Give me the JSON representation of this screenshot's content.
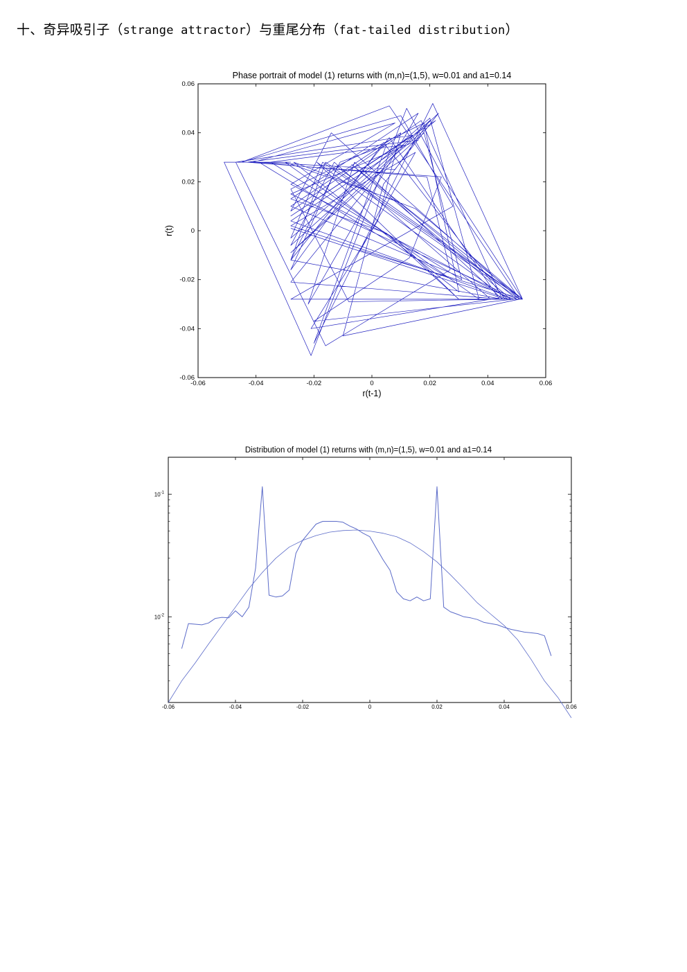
{
  "page": {
    "heading_prefix": "十、奇异吸引子（",
    "heading_term1": "strange attractor",
    "heading_mid": "）与重尾分布（",
    "heading_term2": "fat-tailed distribution",
    "heading_suffix": "）"
  },
  "chart_data": [
    {
      "type": "line",
      "title": "Phase portrait of model (1) returns with (m,n)=(1,5), w=0.01 and a1=0.14",
      "xlabel": "r(t-1)",
      "ylabel": "r(t)",
      "xlim": [
        -0.06,
        0.06
      ],
      "ylim": [
        -0.06,
        0.06
      ],
      "xticks": [
        -0.06,
        -0.04,
        -0.02,
        0,
        0.02,
        0.04,
        0.06
      ],
      "xtick_labels": [
        "-0.06",
        "-0.04",
        "-0.02",
        "0",
        "0.02",
        "0.04",
        "0.06"
      ],
      "yticks": [
        -0.06,
        -0.04,
        -0.02,
        0,
        0.02,
        0.04,
        0.06
      ],
      "ytick_labels": [
        "-0.06",
        "-0.04",
        "-0.02",
        "0",
        "0.02",
        "0.04",
        "0.06"
      ],
      "line_color": "#1f1fbf",
      "grid": false,
      "series": [
        {
          "x": [
            -0.028,
            -0.051,
            -0.021,
            0.012,
            0.025,
            0.052,
            -0.028,
            0.028,
            0.01,
            -0.045,
            0.006,
            0.051,
            -0.014,
            -0.028,
            0.017,
            0.045,
            -0.028,
            -0.011,
            0.005,
            -0.02,
            0.021,
            0.052,
            -0.007,
            0.048,
            -0.028,
            0.008,
            -0.041,
            0.019,
            0.027,
            -0.016,
            -0.047,
            0.014,
            -0.028,
            0.022,
            0.007,
            -0.028,
            0.045,
            -0.006,
            -0.022,
            0.016,
            -0.028,
            0.005,
            0.03,
            -0.019,
            0.047,
            -0.028,
            0.011,
            -0.035,
            0.031,
            0.018,
            -0.028,
            0.023,
            0.004,
            -0.01,
            0.051,
            -0.017,
            -0.028,
            0.02,
            0.037,
            -0.03,
            0.009,
            0.05,
            -0.028,
            0.016,
            -0.043,
            0.024,
            0.013,
            -0.02,
            0.049,
            -0.028,
            0.01,
            0.002,
            -0.021,
            0.041,
            -0.013,
            -0.028,
            0.02,
            0.008,
            -0.039,
            0.026,
            -0.028,
            0.015,
            -0.004,
            0.052,
            -0.016,
            -0.028,
            0.006,
            0.044,
            -0.008,
            -0.028,
            0.018,
            0.03,
            -0.027,
            0.015,
            0.052,
            -0.012,
            -0.028,
            0.004,
            0.046,
            -0.028
          ],
          "y": [
            0.028,
            0.028,
            -0.051,
            0.05,
            0.021,
            -0.028,
            -0.028,
            0.01,
            0.047,
            0.028,
            0.051,
            -0.028,
            0.04,
            0.008,
            0.045,
            -0.028,
            -0.012,
            0.028,
            0.035,
            -0.046,
            0.052,
            -0.028,
            0.027,
            -0.028,
            0.019,
            0.044,
            0.028,
            0.022,
            -0.016,
            -0.047,
            0.028,
            0.039,
            0.006,
            0.045,
            0.03,
            -0.021,
            -0.028,
            0.028,
            -0.03,
            0.048,
            0.013,
            -0.001,
            -0.028,
            0.028,
            -0.028,
            0.004,
            0.035,
            0.028,
            -0.02,
            0.04,
            -0.009,
            0.048,
            0.019,
            -0.043,
            -0.028,
            0.028,
            -0.003,
            0.046,
            -0.028,
            0.028,
            0.012,
            -0.028,
            0.015,
            0.037,
            0.028,
            0.022,
            -0.011,
            -0.037,
            -0.028,
            0.01,
            0.04,
            0.004,
            -0.04,
            -0.028,
            0.028,
            -0.006,
            0.045,
            0.025,
            0.028,
            -0.019,
            0.002,
            0.032,
            -0.008,
            -0.028,
            0.028,
            -0.012,
            0.038,
            -0.028,
            -0.029,
            0.017,
            0.044,
            -0.025,
            0.028,
            0.009,
            -0.028,
            0.026,
            -0.016,
            0.036,
            -0.028,
            0.001
          ]
        }
      ]
    },
    {
      "type": "line",
      "title": "Distribution of model (1) returns with (m,n)=(1,5), w=0.01 and a1=0.14",
      "xlabel": "",
      "ylabel": "",
      "yscale": "log",
      "xlim": [
        -0.06,
        0.06
      ],
      "ylim": [
        0.002,
        0.2
      ],
      "xticks": [
        -0.06,
        -0.04,
        -0.02,
        0,
        0.02,
        0.04,
        0.06
      ],
      "xtick_labels": [
        "-0.06",
        "-0.04",
        "-0.02",
        "0",
        "0.02",
        "0.04",
        "0.06"
      ],
      "ytick_bases": [
        "10",
        "10"
      ],
      "ytick_exponents": [
        "-1",
        "-2"
      ],
      "ytick_values": [
        0.1,
        0.01
      ],
      "line_color": "#5a6ac8",
      "grid": false,
      "series": [
        {
          "x": [
            -0.056,
            -0.054,
            -0.052,
            -0.05,
            -0.048,
            -0.046,
            -0.044,
            -0.042,
            -0.04,
            -0.038,
            -0.036,
            -0.034,
            -0.032,
            -0.03,
            -0.028,
            -0.026,
            -0.024,
            -0.022,
            -0.02,
            -0.018,
            -0.016,
            -0.014,
            -0.012,
            -0.01,
            -0.008,
            -0.006,
            -0.004,
            -0.002,
            0.0,
            0.002,
            0.004,
            0.006,
            0.008,
            0.01,
            0.012,
            0.014,
            0.016,
            0.018,
            0.02,
            0.022,
            0.024,
            0.026,
            0.028,
            0.03,
            0.032,
            0.034,
            0.036,
            0.038,
            0.04,
            0.042,
            0.044,
            0.046,
            0.048,
            0.05,
            0.052,
            0.054
          ],
          "y": [
            0.0055,
            0.0088,
            0.0087,
            0.0086,
            0.0089,
            0.0097,
            0.0099,
            0.0098,
            0.0112,
            0.01,
            0.012,
            0.025,
            0.115,
            0.015,
            0.0145,
            0.0148,
            0.0165,
            0.033,
            0.042,
            0.049,
            0.057,
            0.06,
            0.06,
            0.06,
            0.059,
            0.055,
            0.052,
            0.048,
            0.045,
            0.036,
            0.029,
            0.024,
            0.016,
            0.014,
            0.0135,
            0.0145,
            0.0135,
            0.014,
            0.115,
            0.012,
            0.011,
            0.0105,
            0.01,
            0.0098,
            0.0095,
            0.009,
            0.0088,
            0.0086,
            0.0082,
            0.0079,
            0.0077,
            0.0075,
            0.0074,
            0.0073,
            0.007,
            0.0048
          ]
        },
        {
          "x": [
            -0.06,
            -0.056,
            -0.052,
            -0.048,
            -0.044,
            -0.04,
            -0.036,
            -0.032,
            -0.028,
            -0.024,
            -0.02,
            -0.016,
            -0.012,
            -0.008,
            -0.004,
            0.0,
            0.004,
            0.008,
            0.012,
            0.016,
            0.02,
            0.024,
            0.028,
            0.032,
            0.036,
            0.04,
            0.044,
            0.048,
            0.052,
            0.056,
            0.06
          ],
          "y": [
            0.002,
            0.003,
            0.0042,
            0.006,
            0.0085,
            0.012,
            0.017,
            0.023,
            0.03,
            0.037,
            0.042,
            0.046,
            0.049,
            0.0505,
            0.051,
            0.05,
            0.048,
            0.045,
            0.04,
            0.034,
            0.028,
            0.022,
            0.017,
            0.013,
            0.0105,
            0.0085,
            0.0065,
            0.0045,
            0.003,
            0.0022,
            0.0015
          ]
        }
      ]
    }
  ]
}
